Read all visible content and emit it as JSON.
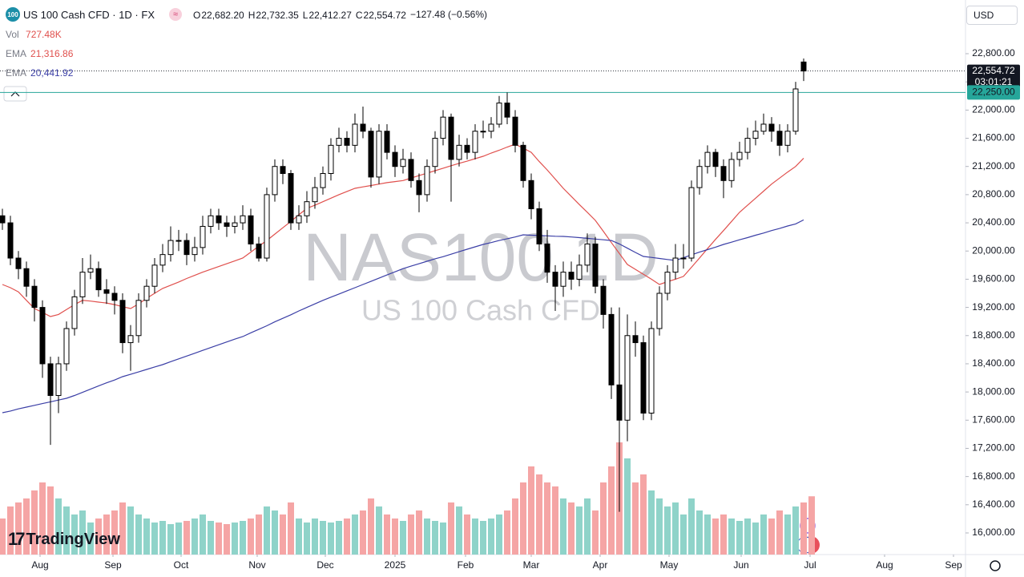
{
  "chart_data": {
    "type": "candlestick",
    "title": "US 100 Cash CFD · 1D · FX",
    "symbol_badge": "100",
    "ohlc": [
      {
        "name": "O",
        "label": "22,682.20"
      },
      {
        "name": "H",
        "label": "22,732.35"
      },
      {
        "name": "L",
        "label": "22,412.27"
      },
      {
        "name": "C",
        "label": "22,554.72"
      }
    ],
    "change": "−127.48 (−0.56%)",
    "watermark": "NAS100 1D",
    "watermark_sub": "US 100 Cash CFD",
    "currency": "USD",
    "logo": "TradingView",
    "up_color": "#ffffff",
    "down_color": "#000000",
    "open": [
      20500,
      20400,
      19900,
      19750,
      19500,
      19200,
      18400,
      17950,
      18400,
      18900,
      19350,
      19700,
      19750,
      19450,
      19400,
      19300,
      18700,
      18800,
      19300,
      19500,
      19800,
      19950,
      20150,
      20150,
      19950,
      20050,
      20350,
      20500,
      20400,
      20350,
      20400,
      20500,
      20100,
      19900,
      20800,
      21200,
      21100,
      20400,
      20500,
      20700,
      20900,
      21100,
      21500,
      21600,
      21500,
      21800,
      21700,
      21050,
      21700,
      21400,
      21200,
      21300,
      21000,
      20800,
      21200,
      21600,
      21900,
      21300,
      21500,
      21400,
      21700,
      21700,
      21800,
      22100,
      21900,
      21500,
      21000,
      20600,
      20100,
      19700,
      19500,
      19700,
      19600,
      19800,
      20100,
      19500,
      19100,
      18100,
      17600,
      18800,
      18700,
      17700,
      18900,
      19400,
      19700,
      19900,
      19900,
      20900,
      21200,
      21400,
      21200,
      21000,
      21300,
      21400,
      21600,
      21700,
      21800,
      21700,
      21500,
      21700,
      22682.2
    ],
    "high": [
      20600,
      20500,
      20000,
      19850,
      19600,
      19300,
      18500,
      18500,
      19000,
      19450,
      19900,
      19950,
      19850,
      19600,
      19500,
      19400,
      18950,
      19400,
      19600,
      19900,
      20100,
      20350,
      20300,
      20250,
      20200,
      20500,
      20600,
      20600,
      20500,
      20500,
      20650,
      20600,
      20200,
      20900,
      21300,
      21300,
      21150,
      20650,
      20850,
      21050,
      21200,
      21600,
      21750,
      21700,
      21950,
      22050,
      21750,
      21800,
      21800,
      21500,
      21450,
      21400,
      21100,
      21300,
      21700,
      22000,
      21950,
      21650,
      21600,
      21800,
      21850,
      21900,
      22200,
      22250,
      22000,
      21550,
      21100,
      20700,
      20300,
      19800,
      19850,
      19850,
      19950,
      20250,
      20200,
      19600,
      19200,
      19200,
      19100,
      19000,
      18800,
      19000,
      19500,
      19800,
      20100,
      20100,
      21000,
      21300,
      21500,
      21450,
      21300,
      21400,
      21550,
      21750,
      21850,
      21950,
      21900,
      21800,
      21800,
      22400,
      22732.35
    ],
    "low": [
      20300,
      19800,
      19600,
      19350,
      19000,
      18200,
      17250,
      17700,
      18300,
      18800,
      19250,
      19600,
      19350,
      19250,
      19100,
      18550,
      18300,
      18700,
      19200,
      19400,
      19700,
      19850,
      20000,
      19800,
      19850,
      19950,
      20250,
      20300,
      20200,
      20250,
      20300,
      20000,
      19850,
      19850,
      20700,
      20950,
      20300,
      20300,
      20400,
      20600,
      20800,
      21000,
      21400,
      21400,
      21400,
      21600,
      20900,
      20950,
      21300,
      21050,
      21100,
      20900,
      20550,
      20700,
      21100,
      21500,
      20700,
      21200,
      21300,
      21300,
      21600,
      21600,
      21750,
      21800,
      21400,
      20900,
      20450,
      20000,
      19550,
      19150,
      19350,
      19450,
      19500,
      19700,
      19400,
      18900,
      17900,
      16300,
      17300,
      18500,
      17600,
      17600,
      18800,
      19300,
      19600,
      19750,
      19850,
      20800,
      21100,
      21050,
      20750,
      20900,
      21200,
      21300,
      21500,
      21650,
      21550,
      21350,
      21400,
      21650,
      22412.27
    ],
    "close": [
      20400,
      19900,
      19750,
      19500,
      19200,
      18400,
      17950,
      18400,
      18900,
      19350,
      19700,
      19750,
      19450,
      19400,
      19300,
      18700,
      18800,
      19300,
      19500,
      19800,
      19950,
      20150,
      20150,
      19950,
      20050,
      20350,
      20500,
      20400,
      20350,
      20400,
      20500,
      20100,
      19900,
      20800,
      21200,
      21100,
      20400,
      20500,
      20700,
      20900,
      21100,
      21500,
      21600,
      21500,
      21800,
      21700,
      21050,
      21700,
      21400,
      21200,
      21300,
      21000,
      20800,
      21200,
      21600,
      21900,
      21300,
      21500,
      21400,
      21700,
      21700,
      21800,
      22100,
      21900,
      21500,
      21000,
      20600,
      20100,
      19700,
      19500,
      19700,
      19600,
      19800,
      20100,
      19500,
      19100,
      18100,
      17600,
      18800,
      18700,
      17700,
      18900,
      19400,
      19700,
      19900,
      19900,
      20900,
      21200,
      21400,
      21200,
      21000,
      21300,
      21400,
      21600,
      21700,
      21800,
      21700,
      21500,
      21700,
      22300,
      22554.72
    ],
    "last_price_label": "22,554.72",
    "countdown": "03:01:21",
    "volume": {
      "name": "Vol",
      "last_label": "727.48K",
      "up_color": "#8fd3c9",
      "down_color": "#f5a5a5",
      "lim": [
        0,
        2000
      ],
      "values": [
        450,
        600,
        650,
        700,
        800,
        900,
        850,
        700,
        600,
        500,
        550,
        400,
        450,
        500,
        550,
        650,
        600,
        500,
        450,
        400,
        420,
        380,
        400,
        420,
        450,
        500,
        420,
        400,
        380,
        400,
        420,
        450,
        500,
        600,
        550,
        500,
        650,
        450,
        400,
        450,
        420,
        400,
        420,
        450,
        500,
        550,
        700,
        600,
        500,
        450,
        420,
        500,
        550,
        450,
        420,
        400,
        650,
        600,
        500,
        450,
        420,
        450,
        500,
        550,
        700,
        900,
        1100,
        1000,
        900,
        850,
        700,
        650,
        600,
        700,
        550,
        900,
        1100,
        1400,
        1200,
        900,
        1000,
        800,
        700,
        600,
        650,
        500,
        700,
        550,
        500,
        450,
        500,
        450,
        420,
        450,
        400,
        500,
        450,
        550,
        500,
        600,
        650,
        727.48
      ]
    },
    "series": [
      {
        "name": "EMA",
        "color": "#e0504d",
        "last_label": "21,316.86",
        "values": [
          19525,
          19480,
          19420,
          19300,
          19184,
          19130,
          19070,
          19100,
          19170,
          19240,
          19300,
          19290,
          19275,
          19263,
          19240,
          19210,
          19184,
          19250,
          19330,
          19400,
          19470,
          19515,
          19560,
          19610,
          19655,
          19700,
          19740,
          19780,
          19820,
          19860,
          19900,
          19985,
          20070,
          20150,
          20240,
          20330,
          20420,
          20515,
          20605,
          20650,
          20700,
          20750,
          20800,
          20845,
          20890,
          20910,
          20930,
          20950,
          20970,
          20985,
          21000,
          21035,
          21070,
          21105,
          21140,
          21175,
          21210,
          21245,
          21275,
          21310,
          21345,
          21390,
          21430,
          21475,
          21515,
          21460,
          21400,
          21270,
          21150,
          21020,
          20890,
          20775,
          20660,
          20550,
          20435,
          20280,
          20120,
          19965,
          19810,
          19740,
          19670,
          19600,
          19525,
          19565,
          19600,
          19640,
          19770,
          19900,
          20035,
          20165,
          20290,
          20420,
          20550,
          20650,
          20750,
          20850,
          20950,
          21035,
          21120,
          21200,
          21316.86
        ]
      },
      {
        "name": "EMA",
        "color": "#3b3fa6",
        "last_label": "20,441.92",
        "values": [
          17706,
          17730,
          17760,
          17785,
          17810,
          17835,
          17860,
          17885,
          17910,
          17950,
          17995,
          18040,
          18085,
          18130,
          18170,
          18217,
          18250,
          18285,
          18320,
          18355,
          18388,
          18430,
          18470,
          18510,
          18550,
          18590,
          18630,
          18670,
          18710,
          18750,
          18786,
          18840,
          18890,
          18940,
          18995,
          19045,
          19095,
          19150,
          19200,
          19250,
          19300,
          19345,
          19390,
          19435,
          19480,
          19525,
          19570,
          19615,
          19660,
          19705,
          19750,
          19785,
          19820,
          19855,
          19890,
          19920,
          19955,
          19990,
          20025,
          20060,
          20094,
          20120,
          20150,
          20175,
          20200,
          20230,
          20225,
          20220,
          20215,
          20210,
          20207,
          20200,
          20190,
          20180,
          20170,
          20160,
          20150,
          20100,
          20040,
          19980,
          19923,
          19910,
          19895,
          19880,
          19866,
          19905,
          19945,
          19985,
          20020,
          20055,
          20094,
          20125,
          20160,
          20190,
          20225,
          20255,
          20290,
          20320,
          20355,
          20385,
          20441.92
        ]
      }
    ],
    "hline": {
      "value": 22250,
      "label": "22,250.00",
      "color": "#26a69a"
    },
    "xlim": [
      -0.3,
      120.2
    ],
    "xticks": [
      {
        "value": 4.7,
        "label": "Aug"
      },
      {
        "value": 13.8,
        "label": "Sep"
      },
      {
        "value": 22.3,
        "label": "Oct"
      },
      {
        "value": 31.8,
        "label": "Nov"
      },
      {
        "value": 40.3,
        "label": "Dec"
      },
      {
        "value": 49,
        "label": "2025"
      },
      {
        "value": 57.8,
        "label": "Feb"
      },
      {
        "value": 66,
        "label": "Mar"
      },
      {
        "value": 74.6,
        "label": "Apr"
      },
      {
        "value": 83.2,
        "label": "May"
      },
      {
        "value": 92.2,
        "label": "Jun"
      },
      {
        "value": 100.8,
        "label": "Jul"
      },
      {
        "value": 110.1,
        "label": "Aug"
      },
      {
        "value": 118.7,
        "label": "Sep"
      }
    ],
    "ylim": [
      15693,
      23562
    ],
    "yticks": [
      {
        "value": 16000,
        "label": "16,000.00"
      },
      {
        "value": 16400,
        "label": "16,400.00"
      },
      {
        "value": 16800,
        "label": "16,800.00"
      },
      {
        "value": 17200,
        "label": "17,200.00"
      },
      {
        "value": 17600,
        "label": "17,600.00"
      },
      {
        "value": 18000,
        "label": "18,000.00"
      },
      {
        "value": 18400,
        "label": "18,400.00"
      },
      {
        "value": 18800,
        "label": "18,800.00"
      },
      {
        "value": 19200,
        "label": "19,200.00"
      },
      {
        "value": 19600,
        "label": "19,600.00"
      },
      {
        "value": 20000,
        "label": "20,000.00"
      },
      {
        "value": 20400,
        "label": "20,400.00"
      },
      {
        "value": 20800,
        "label": "20,800.00"
      },
      {
        "value": 21200,
        "label": "21,200.00"
      },
      {
        "value": 21600,
        "label": "21,600.00"
      },
      {
        "value": 22000,
        "label": "22,000.00"
      },
      {
        "value": 22400,
        "label": "22,400.00"
      },
      {
        "value": 22800,
        "label": "22,800.00"
      }
    ],
    "grid": false
  }
}
